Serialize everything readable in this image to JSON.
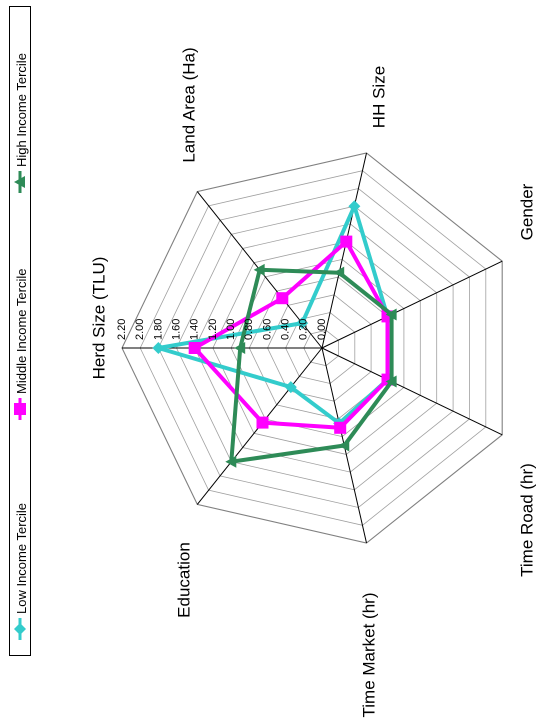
{
  "chart_data": {
    "type": "radar",
    "title": "",
    "axes": [
      "Herd Size (TLU)",
      "Land Area (Ha)",
      "HH Size",
      "Gender",
      "Time Road (hr)",
      "Time Market (hr)",
      "Education"
    ],
    "radial_ticks": [
      "0.00",
      "0.20",
      "0.40",
      "0.60",
      "0.80",
      "1.00",
      "1.20",
      "1.40",
      "1.60",
      "1.80",
      "2.00",
      "2.20"
    ],
    "rlim": [
      0,
      2.2
    ],
    "grid": true,
    "orientation": "rotated-90-counterclockwise",
    "legend_position": "top",
    "series": [
      {
        "name": "Low Income Tercile",
        "color": "#33cccc",
        "marker": "diamond",
        "values": [
          1.8,
          0.55,
          0.85,
          0.8,
          0.8,
          1.6,
          0.35
        ]
      },
      {
        "name": "Middle Income Tercile",
        "color": "#ff00ff",
        "marker": "square",
        "values": [
          1.4,
          1.05,
          0.9,
          0.8,
          0.8,
          1.2,
          0.7
        ]
      },
      {
        "name": "High Income Tercile",
        "color": "#2e8b57",
        "marker": "triangle",
        "values": [
          0.9,
          1.6,
          1.1,
          0.85,
          0.85,
          0.85,
          1.1
        ]
      }
    ]
  }
}
